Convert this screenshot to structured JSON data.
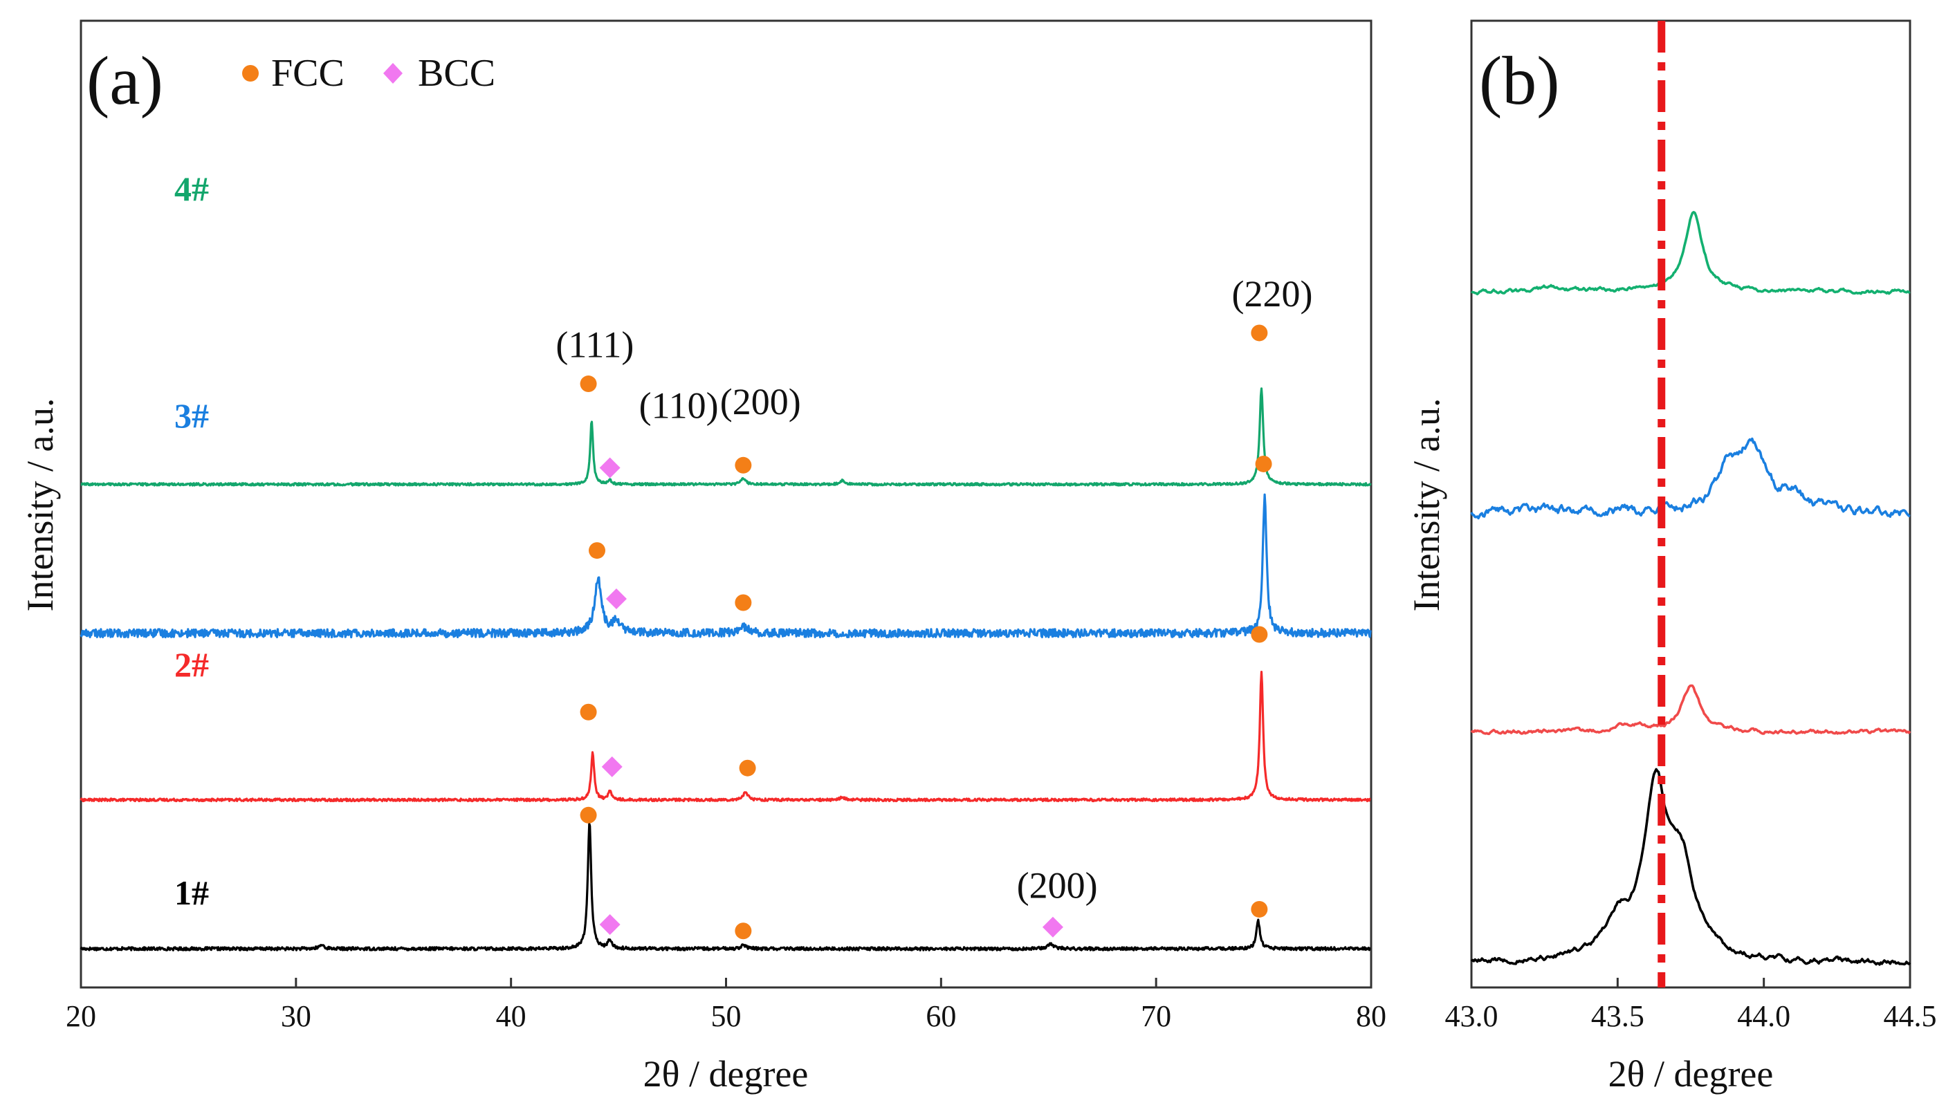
{
  "chart_data": [
    {
      "panel": "(a)",
      "type": "line",
      "xlabel": "2θ / degree",
      "ylabel": "Intensity / a.u.",
      "xlim": [
        20,
        80
      ],
      "xticks": [
        "20",
        "30",
        "40",
        "50",
        "60",
        "70",
        "80"
      ],
      "legend": {
        "position": "top-left",
        "entries": [
          {
            "label": "FCC",
            "marker": "circle",
            "color": "#f47f17"
          },
          {
            "label": "BCC",
            "marker": "diamond",
            "color": "#f178f0"
          }
        ]
      },
      "series": [
        {
          "name": "1#",
          "color": "#000000",
          "baseline": 0,
          "noise": 1.2,
          "peaks": [
            {
              "x": 43.65,
              "height": 100,
              "width": 0.14
            },
            {
              "x": 44.6,
              "height": 7,
              "width": 0.15
            },
            {
              "x": 50.8,
              "height": 3,
              "width": 0.2
            },
            {
              "x": 65.1,
              "height": 4,
              "width": 0.25
            },
            {
              "x": 74.75,
              "height": 22,
              "width": 0.15
            },
            {
              "x": 31.2,
              "height": 3,
              "width": 0.2
            }
          ],
          "markers": [
            {
              "phase": "FCC",
              "x": 43.6,
              "y": 105
            },
            {
              "phase": "BCC",
              "x": 44.6,
              "y": 19
            },
            {
              "phase": "FCC",
              "x": 50.8,
              "y": 14
            },
            {
              "phase": "BCC",
              "x": 65.2,
              "y": 17
            },
            {
              "phase": "FCC",
              "x": 74.8,
              "y": 31
            }
          ],
          "labels": [
            {
              "text": "(200)",
              "x": 65.4,
              "y": 40
            }
          ]
        },
        {
          "name": "2#",
          "color": "#f52a2a",
          "baseline": 117,
          "noise": 1.0,
          "peaks": [
            {
              "x": 43.8,
              "height": 37,
              "width": 0.13
            },
            {
              "x": 44.6,
              "height": 7,
              "width": 0.14
            },
            {
              "x": 50.9,
              "height": 6,
              "width": 0.2
            },
            {
              "x": 55.4,
              "height": 2,
              "width": 0.2
            },
            {
              "x": 74.9,
              "height": 100,
              "width": 0.14
            }
          ],
          "markers": [
            {
              "phase": "FCC",
              "x": 43.6,
              "y": 186
            },
            {
              "phase": "BCC",
              "x": 44.7,
              "y": 143
            },
            {
              "phase": "FCC",
              "x": 51.0,
              "y": 142
            },
            {
              "phase": "FCC",
              "x": 74.8,
              "y": 247
            }
          ],
          "labels": []
        },
        {
          "name": "3#",
          "color": "#1a7fe0",
          "baseline": 248,
          "noise": 3.2,
          "peaks": [
            {
              "x": 44.05,
              "height": 42,
              "width": 0.28
            },
            {
              "x": 44.9,
              "height": 9,
              "width": 0.35
            },
            {
              "x": 50.8,
              "height": 5,
              "width": 0.4
            },
            {
              "x": 75.05,
              "height": 107,
              "width": 0.16
            }
          ],
          "markers": [
            {
              "phase": "FCC",
              "x": 44.0,
              "y": 313
            },
            {
              "phase": "BCC",
              "x": 44.9,
              "y": 275
            },
            {
              "phase": "FCC",
              "x": 50.8,
              "y": 272
            },
            {
              "phase": "FCC",
              "x": 75.0,
              "y": 381
            }
          ],
          "labels": []
        },
        {
          "name": "4#",
          "color": "#13a66c",
          "baseline": 365,
          "noise": 0.9,
          "peaks": [
            {
              "x": 43.75,
              "height": 50,
              "width": 0.12
            },
            {
              "x": 44.6,
              "height": 3,
              "width": 0.15
            },
            {
              "x": 50.8,
              "height": 5,
              "width": 0.2
            },
            {
              "x": 55.4,
              "height": 3,
              "width": 0.2
            },
            {
              "x": 74.9,
              "height": 75,
              "width": 0.15
            }
          ],
          "markers": [
            {
              "phase": "FCC",
              "x": 43.6,
              "y": 444
            },
            {
              "phase": "BCC",
              "x": 44.6,
              "y": 378
            },
            {
              "phase": "FCC",
              "x": 50.8,
              "y": 380
            },
            {
              "phase": "FCC",
              "x": 74.8,
              "y": 484
            }
          ],
          "labels": [
            {
              "text": "(111)",
              "x": 43.9,
              "y": 465
            },
            {
              "text": "(110)",
              "x": 47.8,
              "y": 417
            },
            {
              "text": "(200)",
              "x": 51.6,
              "y": 420
            },
            {
              "text": "(220)",
              "x": 75.4,
              "y": 505
            }
          ]
        }
      ]
    },
    {
      "panel": "(b)",
      "type": "line",
      "xlabel": "2θ / degree",
      "ylabel": "Intensity / a.u.",
      "xlim": [
        43.0,
        44.5
      ],
      "xticks": [
        "43.0",
        "43.5",
        "44.0",
        "44.5"
      ],
      "reference_line": {
        "x": 43.65,
        "color": "#e8181b",
        "style": "dash-dot"
      },
      "series": [
        {
          "name": "1#",
          "color": "#000000",
          "baseline": 0,
          "noise": 0.8,
          "peaks": [
            {
              "x": 43.63,
              "height": 66,
              "width": 0.06
            },
            {
              "x": 43.72,
              "height": 34,
              "width": 0.07
            },
            {
              "x": 43.5,
              "height": 14,
              "width": 0.07
            }
          ]
        },
        {
          "name": "2#",
          "color": "#f04a4a",
          "baseline": 92,
          "noise": 0.6,
          "peaks": [
            {
              "x": 43.75,
              "height": 18,
              "width": 0.05
            },
            {
              "x": 43.55,
              "height": 3,
              "width": 0.08
            }
          ]
        },
        {
          "name": "3#",
          "color": "#1a7fe0",
          "baseline": 180,
          "noise": 1.4,
          "peaks": [
            {
              "x": 43.96,
              "height": 26,
              "width": 0.07
            },
            {
              "x": 43.87,
              "height": 14,
              "width": 0.05
            },
            {
              "x": 44.1,
              "height": 6,
              "width": 0.05
            }
          ]
        },
        {
          "name": "4#",
          "color": "#13b070",
          "baseline": 268,
          "noise": 0.6,
          "peaks": [
            {
              "x": 43.76,
              "height": 32,
              "width": 0.045
            },
            {
              "x": 43.28,
              "height": 2,
              "width": 0.05
            },
            {
              "x": 43.58,
              "height": 1.5,
              "width": 0.05
            }
          ]
        }
      ]
    }
  ]
}
